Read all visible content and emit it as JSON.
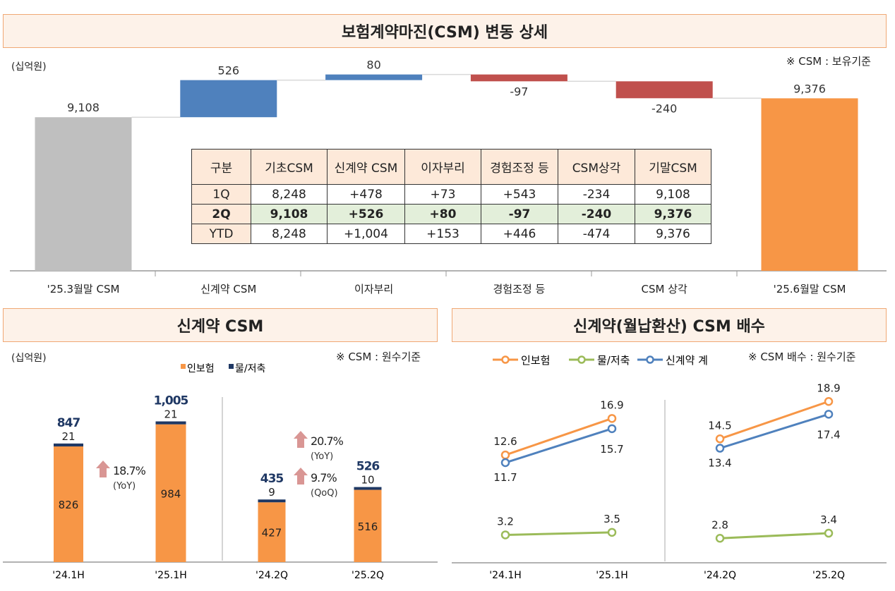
{
  "top": {
    "title": "보험계약마진(CSM) 변동 상세",
    "unit": "(십억원)",
    "note": "※ CSM : 보유기준"
  },
  "table": {
    "headers": [
      "구분",
      "기초CSM",
      "신계약 CSM",
      "이자부리",
      "경험조정 등",
      "CSM상각",
      "기말CSM"
    ],
    "rows": [
      [
        "1Q",
        "8,248",
        "+478",
        "+73",
        "+543",
        "-234",
        "9,108"
      ],
      [
        "2Q",
        "9,108",
        "+526",
        "+80",
        "-97",
        "-240",
        "9,376"
      ],
      [
        "YTD",
        "8,248",
        "+1,004",
        "+153",
        "+446",
        "-474",
        "9,376"
      ]
    ],
    "highlight_row": "2Q"
  },
  "bottom_left": {
    "title": "신계약 CSM",
    "unit": "(십억원)",
    "note": "※ CSM : 원수기준",
    "growth": [
      {
        "pct": "18.7%",
        "basis": "(YoY)"
      },
      {
        "pct": "20.7%",
        "basis": "(YoY)"
      },
      {
        "pct": "9.7%",
        "basis": "(QoQ)"
      }
    ]
  },
  "bottom_right": {
    "title": "신계약(월납환산) CSM 배수",
    "note": "※ CSM 배수 : 원수기준"
  },
  "colors": {
    "gray": "#bfbfbf",
    "blue": "#4f81bd",
    "red": "#c0504d",
    "orange": "#f79646",
    "navy": "#1f3864",
    "green": "#9bbb59",
    "arrow": "#d99694"
  },
  "chart_data": [
    {
      "type": "waterfall",
      "categories": [
        "'25.3월말 CSM",
        "신계약 CSM",
        "이자부리",
        "경험조정 등",
        "CSM 상각",
        "'25.6월말 CSM"
      ],
      "values": [
        9108,
        526,
        80,
        -97,
        -240,
        9376
      ],
      "labels": [
        "9,108",
        "526",
        "80",
        "-97",
        "-240",
        "9,376"
      ],
      "kinds": [
        "total",
        "delta",
        "delta",
        "delta",
        "delta",
        "total"
      ],
      "ylim": [
        6930,
        10000
      ],
      "ylabel": "(십억원)"
    },
    {
      "type": "bar",
      "stacked": true,
      "categories": [
        "'24.1H",
        "'25.1H",
        "'24.2Q",
        "'25.2Q"
      ],
      "series": [
        {
          "name": "인보험",
          "values": [
            826,
            984,
            427,
            516
          ],
          "color": "#f79646"
        },
        {
          "name": "물/저축",
          "values": [
            21,
            21,
            9,
            10
          ],
          "color": "#1f3864"
        }
      ],
      "totals": [
        "847",
        "1,005",
        "435",
        "526"
      ],
      "legend": "top-center",
      "ylim": [
        0,
        1100
      ]
    },
    {
      "type": "line",
      "categories": [
        "'24.1H",
        "'25.1H",
        "'24.2Q",
        "'25.2Q"
      ],
      "groups": [
        [
          "'24.1H",
          "'25.1H"
        ],
        [
          "'24.2Q",
          "'25.2Q"
        ]
      ],
      "series": [
        {
          "name": "인보험",
          "values": [
            12.6,
            16.9,
            14.5,
            18.9
          ],
          "color": "#f79646"
        },
        {
          "name": "물/저축",
          "values": [
            3.2,
            3.5,
            2.8,
            3.4
          ],
          "color": "#9bbb59"
        },
        {
          "name": "신계약 계",
          "values": [
            11.7,
            15.7,
            13.4,
            17.4
          ],
          "color": "#4f81bd"
        }
      ],
      "legend": "top-left",
      "ylim": [
        0,
        20
      ]
    }
  ]
}
